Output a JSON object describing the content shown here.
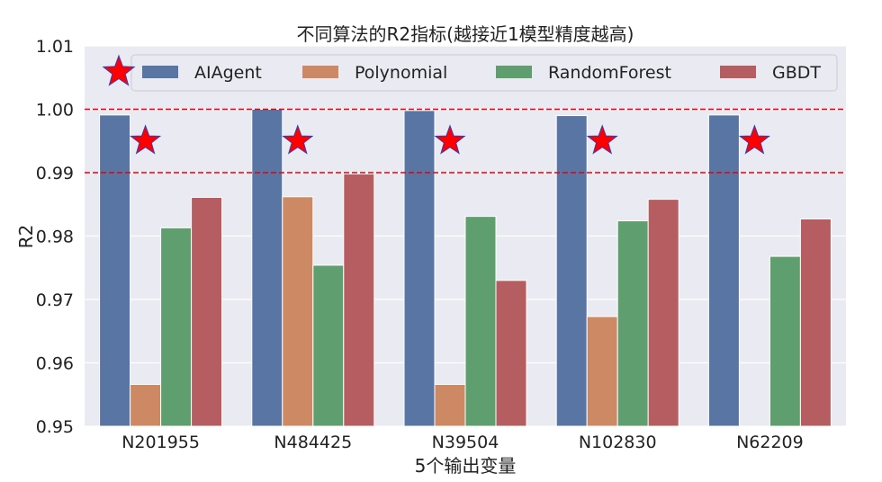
{
  "chart_data": {
    "type": "bar",
    "title": "不同算法的R2指标(越接近1模型精度越高)",
    "xlabel": "5个输出变量",
    "ylabel": "R2",
    "ylim": [
      0.95,
      1.01
    ],
    "yticks": [
      "0.95",
      "0.96",
      "0.97",
      "0.98",
      "0.99",
      "1.00",
      "1.01"
    ],
    "categories": [
      "N201955",
      "N484425",
      "N39504",
      "N102830",
      "N62209"
    ],
    "series": [
      {
        "name": "AIAgent",
        "color": "#5875a4",
        "values": [
          0.9991,
          1.0,
          0.9998,
          0.999,
          0.9991
        ]
      },
      {
        "name": "Polynomial",
        "color": "#cc8963",
        "values": [
          0.9566,
          0.9862,
          0.9566,
          0.9673,
          null
        ]
      },
      {
        "name": "RandomForest",
        "color": "#5f9e6e",
        "values": [
          0.9813,
          0.9754,
          0.9831,
          0.9824,
          0.9768
        ]
      },
      {
        "name": "GBDT",
        "color": "#b55d60",
        "values": [
          0.9861,
          0.9898,
          0.973,
          0.9858,
          0.9827
        ]
      }
    ],
    "reference_lines": [
      1.0,
      0.99
    ],
    "reference_line_color": "#e8000b",
    "star_marker_y": 0.995,
    "legend_position": "top",
    "grid": true,
    "background": "#eaeaf2"
  }
}
